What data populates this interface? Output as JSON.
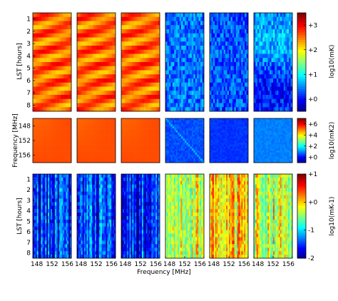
{
  "chart_data": {
    "type": "heatmap",
    "layout": "3 rows x 6 panels",
    "xlabel": "Frequency [MHz]",
    "x_ticks": [
      "148",
      "152",
      "156"
    ],
    "rows": [
      {
        "name": "row1",
        "ylabel": "LST [hours]",
        "y_ticks": [
          "1",
          "2",
          "3",
          "4",
          "5",
          "6",
          "7",
          "8"
        ],
        "colorbar": {
          "label": "log10(mK)",
          "ticks": [
            "+3",
            "+2",
            "+1",
            "+0"
          ],
          "range": [
            -0.5,
            3.5
          ]
        },
        "panels": [
          {
            "pattern": "stripes",
            "level": 2.6
          },
          {
            "pattern": "stripes",
            "level": 2.6
          },
          {
            "pattern": "stripes",
            "level": 2.6
          },
          {
            "pattern": "noise",
            "level": 0.45
          },
          {
            "pattern": "noise",
            "level": 0.3
          },
          {
            "pattern": "noise-gradient",
            "level": 0.55
          }
        ]
      },
      {
        "name": "row2",
        "ylabel": "Frequency [MHz]",
        "y_ticks": [
          "148",
          "152",
          "156"
        ],
        "colorbar": {
          "label": "log10(mK2)",
          "ticks": [
            "+6",
            "+4",
            "+2",
            "+0"
          ],
          "range": [
            -1,
            7
          ]
        },
        "panels": [
          {
            "pattern": "smooth",
            "level": 5.2
          },
          {
            "pattern": "smooth",
            "level": 5.2
          },
          {
            "pattern": "smooth",
            "level": 5.2
          },
          {
            "pattern": "diagonal",
            "level": 0.6
          },
          {
            "pattern": "flat",
            "level": 0.4
          },
          {
            "pattern": "flat-light",
            "level": 1.0
          }
        ]
      },
      {
        "name": "row3",
        "ylabel": "LST [hours]",
        "y_ticks": [
          "1",
          "2",
          "3",
          "4",
          "5",
          "6",
          "7",
          "8"
        ],
        "colorbar": {
          "label": "log10(mK-1)",
          "ticks": [
            "+1",
            "+0",
            "-1",
            "-2"
          ],
          "range": [
            -2,
            1
          ]
        },
        "panels": [
          {
            "pattern": "columns",
            "level": -1.5
          },
          {
            "pattern": "columns",
            "level": -1.45
          },
          {
            "pattern": "columns",
            "level": -1.5
          },
          {
            "pattern": "columns",
            "level": -0.25
          },
          {
            "pattern": "columns",
            "level": -0.05
          },
          {
            "pattern": "columns",
            "level": -0.25
          }
        ]
      }
    ]
  }
}
